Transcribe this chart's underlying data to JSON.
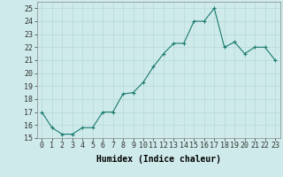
{
  "x": [
    0,
    1,
    2,
    3,
    4,
    5,
    6,
    7,
    8,
    9,
    10,
    11,
    12,
    13,
    14,
    15,
    16,
    17,
    18,
    19,
    20,
    21,
    22,
    23
  ],
  "y": [
    17.0,
    15.8,
    15.3,
    15.3,
    15.8,
    15.8,
    17.0,
    17.0,
    18.4,
    18.5,
    19.3,
    20.5,
    21.5,
    22.3,
    22.3,
    24.0,
    24.0,
    25.0,
    22.0,
    22.4,
    21.5,
    22.0,
    22.0,
    21.0
  ],
  "line_color": "#1a7a6e",
  "marker": "+",
  "marker_size": 3,
  "xlabel": "Humidex (Indice chaleur)",
  "xlim": [
    -0.5,
    23.5
  ],
  "ylim": [
    15,
    25.5
  ],
  "yticks": [
    15,
    16,
    17,
    18,
    19,
    20,
    21,
    22,
    23,
    24,
    25
  ],
  "xticks": [
    0,
    1,
    2,
    3,
    4,
    5,
    6,
    7,
    8,
    9,
    10,
    11,
    12,
    13,
    14,
    15,
    16,
    17,
    18,
    19,
    20,
    21,
    22,
    23
  ],
  "bg_color": "#ceeaea",
  "grid_color": "#b8d8d8",
  "font_family": "monospace",
  "tick_fontsize": 6.0,
  "xlabel_fontsize": 7.0
}
